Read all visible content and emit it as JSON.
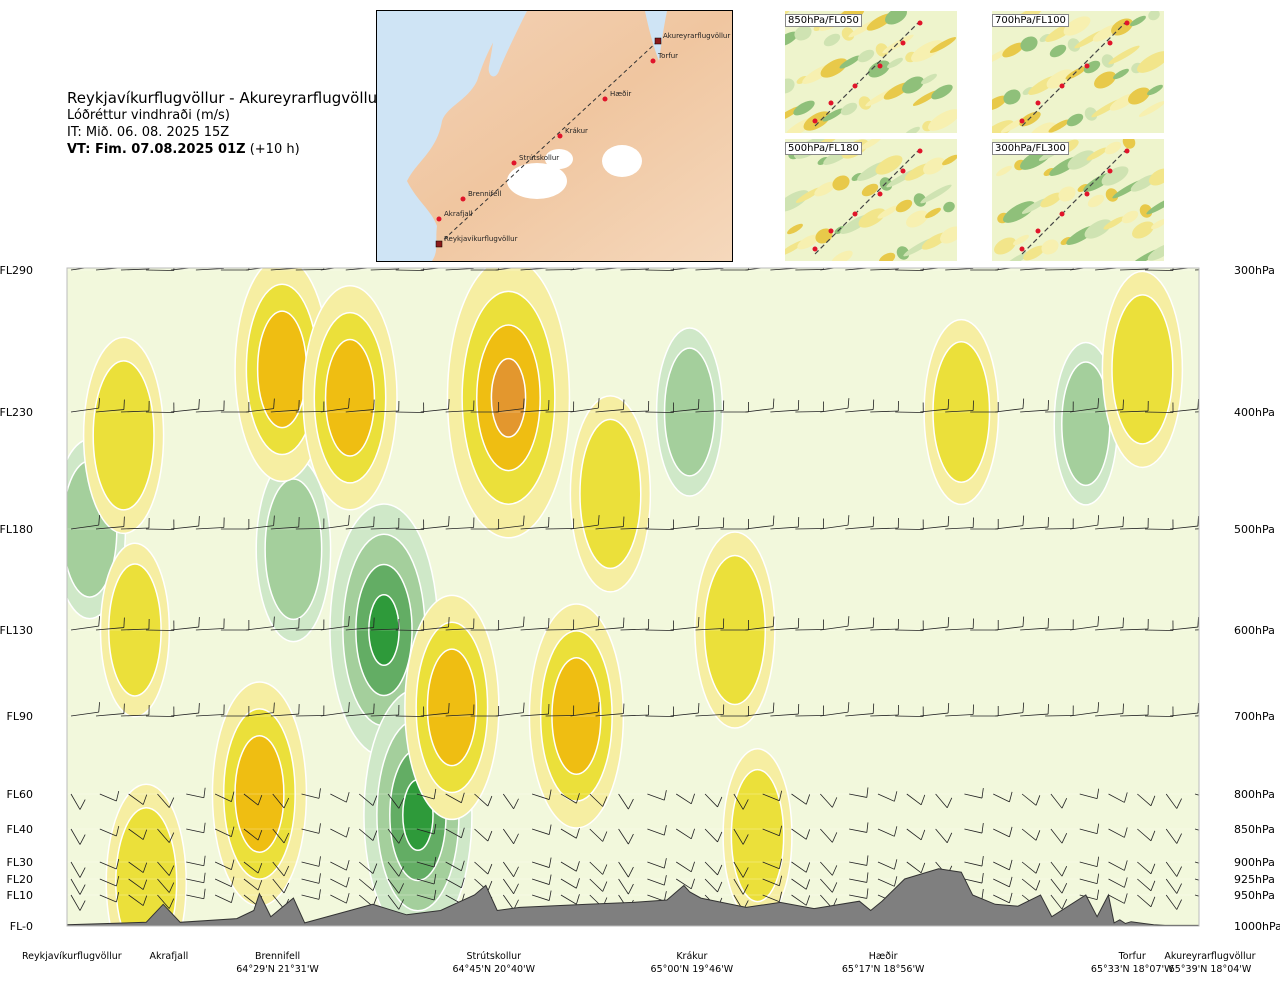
{
  "header": {
    "route": "Reykjavíkurflugvöllur - Akureyrarflugvöllur",
    "variable": "Lóðréttur vindhraði (m/s)",
    "issue_time": "IT: Mið. 06. 08. 2025 15Z",
    "valid_time_bold": "VT: Fim. 07.08.2025 01Z",
    "valid_time_lead": "(+10 h)"
  },
  "route_map": {
    "waypoints": [
      "Akureyrarflugvöllur",
      "Torfur",
      "Hæðir",
      "Krákur",
      "Strútskollur",
      "Brennifell",
      "Akrafjall",
      "Reykjavíkurflugvöllur"
    ]
  },
  "level_maps": [
    {
      "label": "850hPa/FL050"
    },
    {
      "label": "700hPa/FL100"
    },
    {
      "label": "500hPa/FL180"
    },
    {
      "label": "300hPa/FL300"
    }
  ],
  "chart_data": {
    "type": "heatmap",
    "title": "Reykjavíkurflugvöllur - Akureyrarflugvöllur",
    "subtitle": "Lóðréttur vindhraði (m/s)",
    "flight_levels": [
      "FL290",
      "FL230",
      "FL180",
      "FL130",
      "FL90",
      "FL60",
      "FL40",
      "FL30",
      "FL20",
      "FL10",
      "FL-0"
    ],
    "pressure_levels": [
      "300hPa",
      "400hPa",
      "500hPa",
      "600hPa",
      "700hPa",
      "800hPa",
      "850hPa",
      "900hPa",
      "925hPa",
      "950hPa",
      "1000hPa"
    ],
    "pressure_values": [
      300,
      400,
      500,
      600,
      700,
      800,
      850,
      900,
      925,
      950,
      1000
    ],
    "x_labels": [
      {
        "name": "Reykjavíkurflugvöllur",
        "coord": ""
      },
      {
        "name": "Akrafjall",
        "coord": ""
      },
      {
        "name": "Brennifell",
        "coord": "64°29'N 21°31'W"
      },
      {
        "name": "Strútskollur",
        "coord": "64°45'N 20°40'W"
      },
      {
        "name": "Krákur",
        "coord": "65°00'N 19°46'W"
      },
      {
        "name": "Hæðir",
        "coord": "65°17'N 18°56'W"
      },
      {
        "name": "Torfur",
        "coord": "65°33'N 18°07'W"
      },
      {
        "name": "Akureyrarflugvöllur",
        "coord": "65°39'N 18°04'W"
      }
    ],
    "x_positions": [
      0.0,
      0.09,
      0.186,
      0.377,
      0.552,
      0.721,
      0.941,
      1.0
    ],
    "colors": {
      "strong_down": "#2e9a3a",
      "down2": "#63ad64",
      "down1": "#a4cf9c",
      "weak_down": "#cfe8c8",
      "neutral": "#f2f8dc",
      "weak_up": "#f6eea2",
      "up1": "#ebe03a",
      "up2": "#efbe12",
      "strong_up": "#e3972e",
      "terrain": "#7f7f7f"
    },
    "updraft_cores": [
      {
        "x": 0.05,
        "p": 420,
        "v": 1.0
      },
      {
        "x": 0.19,
        "p": 370,
        "v": 1.5
      },
      {
        "x": 0.25,
        "p": 390,
        "v": 1.5
      },
      {
        "x": 0.39,
        "p": 390,
        "v": 2.5
      },
      {
        "x": 0.48,
        "p": 470,
        "v": 1.0
      },
      {
        "x": 0.59,
        "p": 600,
        "v": 1.0
      },
      {
        "x": 0.34,
        "p": 690,
        "v": 1.5
      },
      {
        "x": 0.45,
        "p": 700,
        "v": 1.5
      },
      {
        "x": 0.17,
        "p": 800,
        "v": 1.5
      },
      {
        "x": 0.07,
        "p": 930,
        "v": 1.0
      },
      {
        "x": 0.95,
        "p": 370,
        "v": 1.0
      },
      {
        "x": 0.79,
        "p": 400,
        "v": 0.8
      },
      {
        "x": 0.06,
        "p": 600,
        "v": 0.6
      },
      {
        "x": 0.61,
        "p": 860,
        "v": 0.6
      }
    ],
    "downdraft_cores": [
      {
        "x": 0.28,
        "p": 600,
        "v": -2.0
      },
      {
        "x": 0.31,
        "p": 830,
        "v": -2.0
      },
      {
        "x": 0.2,
        "p": 520,
        "v": -0.8
      },
      {
        "x": 0.02,
        "p": 500,
        "v": -0.7
      },
      {
        "x": 0.55,
        "p": 400,
        "v": -0.5
      },
      {
        "x": 0.9,
        "p": 410,
        "v": -0.4
      }
    ],
    "terrain_profile": {
      "x": [
        0,
        0.07,
        0.085,
        0.1,
        0.15,
        0.165,
        0.17,
        0.18,
        0.2,
        0.21,
        0.25,
        0.27,
        0.3,
        0.33,
        0.36,
        0.37,
        0.38,
        0.4,
        0.46,
        0.5,
        0.53,
        0.545,
        0.55,
        0.56,
        0.6,
        0.63,
        0.66,
        0.7,
        0.71,
        0.72,
        0.74,
        0.77,
        0.79,
        0.8,
        0.82,
        0.84,
        0.86,
        0.87,
        0.9,
        0.91,
        0.92,
        0.925,
        0.93,
        0.935,
        0.94,
        0.96,
        0.97,
        1.0
      ],
      "p": [
        998,
        994,
        965,
        994,
        988,
        975,
        948,
        985,
        955,
        995,
        975,
        965,
        982,
        975,
        950,
        935,
        975,
        970,
        965,
        962,
        958,
        935,
        945,
        955,
        970,
        962,
        972,
        960,
        975,
        960,
        925,
        910,
        915,
        950,
        965,
        968,
        950,
        985,
        950,
        985,
        950,
        995,
        990,
        996,
        993,
        998,
        999,
        999
      ]
    },
    "wind_barbs": "drawn at each pressure level along the cross-section"
  }
}
